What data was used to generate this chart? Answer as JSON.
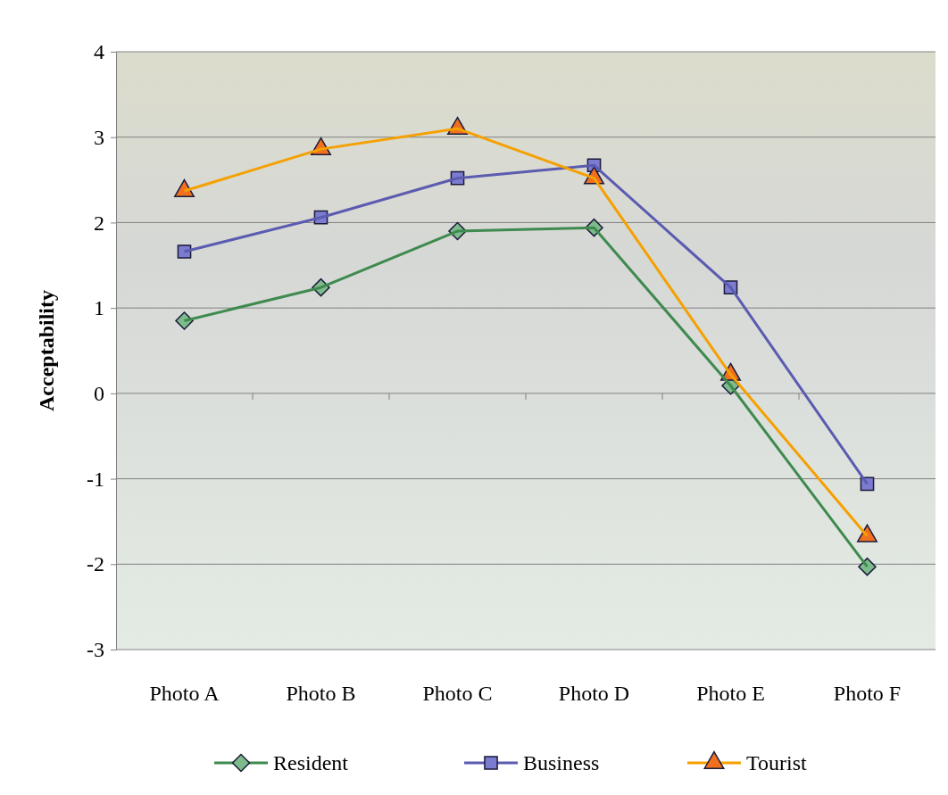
{
  "chart_data": {
    "type": "line",
    "ylabel": "Acceptability",
    "categories": [
      "Photo A",
      "Photo B",
      "Photo C",
      "Photo D",
      "Photo E",
      "Photo F"
    ],
    "series": [
      {
        "name": "Resident",
        "color": "#3f8a4f",
        "marker": "diamond",
        "values": [
          0.85,
          1.24,
          1.9,
          1.94,
          0.09,
          -2.03
        ]
      },
      {
        "name": "Business",
        "color": "#5b5bb0",
        "marker": "square",
        "values": [
          1.66,
          2.06,
          2.52,
          2.67,
          1.24,
          -1.06
        ]
      },
      {
        "name": "Tourist",
        "color": "#f5a000",
        "marker": "triangle",
        "values": [
          2.37,
          2.86,
          3.1,
          2.52,
          0.22,
          -1.67
        ]
      }
    ],
    "ylim": [
      -3,
      4
    ],
    "yticks": [
      -3,
      -2,
      -1,
      0,
      1,
      2,
      3,
      4
    ],
    "grid": "y",
    "legend": "bottom",
    "line_style": "solid"
  }
}
